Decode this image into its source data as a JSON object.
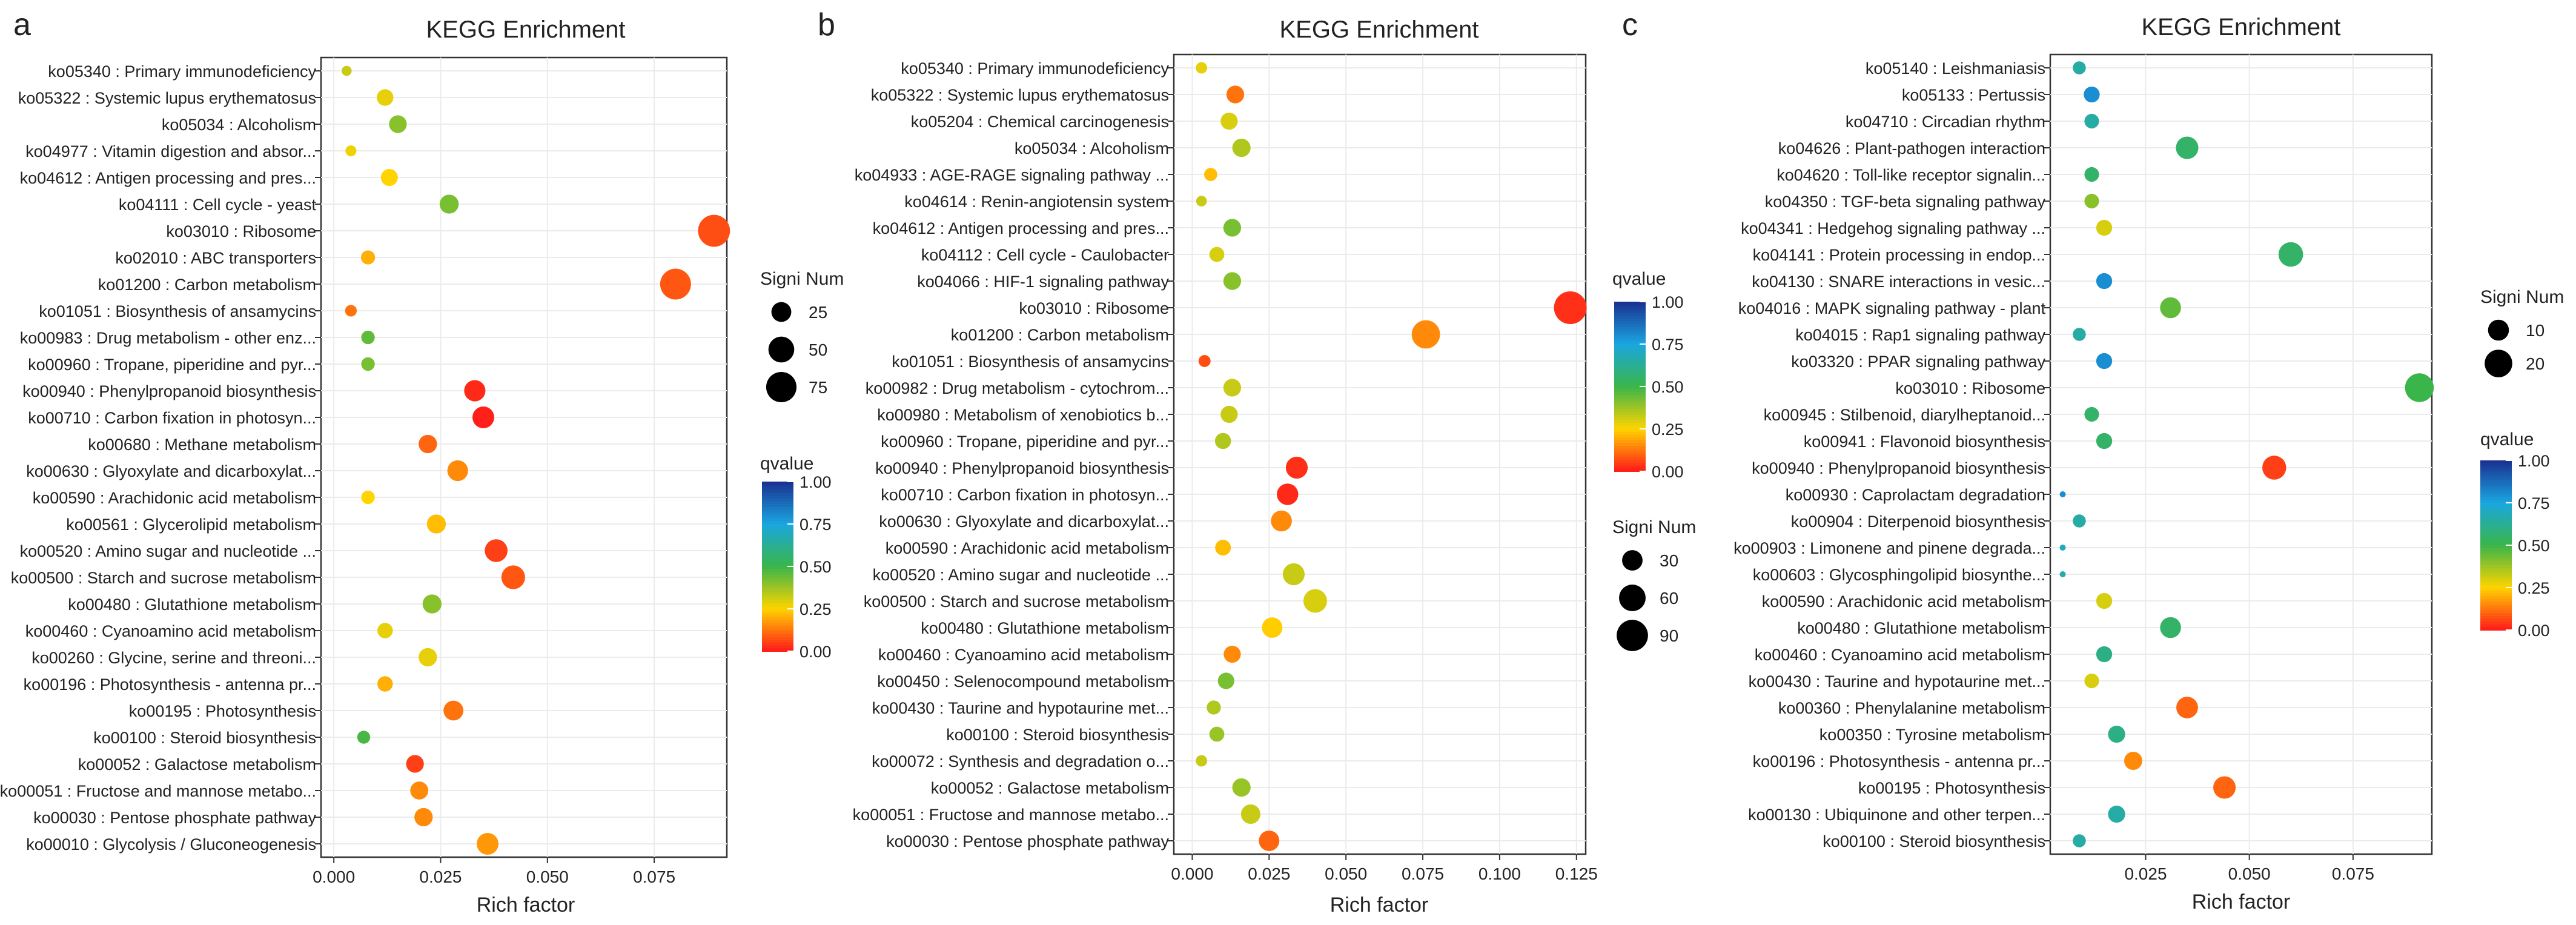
{
  "colors": {
    "low": "#ff1a1a",
    "mid_low": "#ffd400",
    "mid": "#39b54a",
    "mid_high": "#1aa6e0",
    "high": "#1a2f8f",
    "grid": "#ebebeb",
    "axis": "#333333"
  },
  "chart_data": [
    {
      "panel": "a",
      "type": "scatter",
      "title": "KEGG Enrichment",
      "xlabel": "Rich factor",
      "xlim": [
        -0.003,
        0.092
      ],
      "xticks": [
        0.0,
        0.025,
        0.05,
        0.075
      ],
      "xtick_labels": [
        "0.000",
        "0.025",
        "0.050",
        "0.075"
      ],
      "size_legend_title": "Signi Num",
      "size_legend": [
        25,
        50,
        75
      ],
      "size_range": [
        1,
        90
      ],
      "color_legend_title": "qvalue",
      "color_ticks": [
        "0.00",
        "0.25",
        "0.50",
        "0.75",
        "1.00"
      ],
      "terms": [
        "ko05340 : Primary immunodeficiency",
        "ko05322 : Systemic lupus erythematosus",
        "ko05034 : Alcoholism",
        "ko04977 : Vitamin digestion and absor...",
        "ko04612 : Antigen processing and pres...",
        "ko04111 : Cell cycle - yeast",
        "ko03010 : Ribosome",
        "ko02010 : ABC transporters",
        "ko01200 : Carbon metabolism",
        "ko01051 : Biosynthesis of ansamycins",
        "ko00983 : Drug metabolism - other enz...",
        "ko00960 : Tropane, piperidine and pyr...",
        "ko00940 : Phenylpropanoid biosynthesis",
        "ko00710 : Carbon fixation in photosyn...",
        "ko00680 : Methane metabolism",
        "ko00630 : Glyoxylate and dicarboxylat...",
        "ko00590 : Arachidonic acid metabolism",
        "ko00561 : Glycerolipid metabolism",
        "ko00520 : Amino sugar and nucleotide ...",
        "ko00500 : Starch and sucrose metabolism",
        "ko00480 : Glutathione metabolism",
        "ko00460 : Cyanoamino acid metabolism",
        "ko00260 : Glycine, serine and threoni...",
        "ko00196 : Photosynthesis - antenna pr...",
        "ko00195 : Photosynthesis",
        "ko00100 : Steroid biosynthesis",
        "ko00052 : Galactose metabolism",
        "ko00051 : Fructose and mannose metabo...",
        "ko00030 : Pentose phosphate pathway",
        "ko00010 : Glycolysis / Gluconeogenesis"
      ],
      "rich_factor": [
        0.003,
        0.012,
        0.015,
        0.004,
        0.013,
        0.027,
        0.089,
        0.008,
        0.08,
        0.004,
        0.008,
        0.008,
        0.033,
        0.035,
        0.022,
        0.029,
        0.008,
        0.024,
        0.038,
        0.042,
        0.023,
        0.012,
        0.022,
        0.012,
        0.028,
        0.007,
        0.019,
        0.02,
        0.021,
        0.036
      ],
      "signi_num": [
        3,
        15,
        18,
        4,
        16,
        22,
        85,
        9,
        78,
        5,
        8,
        8,
        30,
        32,
        20,
        28,
        8,
        22,
        36,
        40,
        22,
        12,
        20,
        12,
        25,
        7,
        18,
        19,
        20,
        32
      ],
      "qvalue": [
        0.32,
        0.28,
        0.4,
        0.27,
        0.25,
        0.42,
        0.07,
        0.2,
        0.08,
        0.12,
        0.45,
        0.42,
        0.02,
        0.01,
        0.1,
        0.15,
        0.25,
        0.22,
        0.05,
        0.08,
        0.4,
        0.28,
        0.28,
        0.2,
        0.12,
        0.48,
        0.05,
        0.15,
        0.15,
        0.17
      ]
    },
    {
      "panel": "b",
      "type": "scatter",
      "title": "KEGG Enrichment",
      "xlabel": "Rich factor",
      "xlim": [
        -0.006,
        0.128
      ],
      "xticks": [
        0.0,
        0.025,
        0.05,
        0.075,
        0.1,
        0.125
      ],
      "xtick_labels": [
        "0.000",
        "0.025",
        "0.050",
        "0.075",
        "0.100",
        "0.125"
      ],
      "size_legend_title": "Signi Num",
      "size_legend": [
        30,
        60,
        90
      ],
      "size_range": [
        1,
        100
      ],
      "color_legend_title": "qvalue",
      "color_ticks": [
        "0.00",
        "0.25",
        "0.50",
        "0.75",
        "1.00"
      ],
      "terms": [
        "ko05340 : Primary immunodeficiency",
        "ko05322 : Systemic lupus erythematosus",
        "ko05204 : Chemical carcinogenesis",
        "ko05034 : Alcoholism",
        "ko04933 : AGE-RAGE signaling pathway ...",
        "ko04614 : Renin-angiotensin system",
        "ko04612 : Antigen processing and pres...",
        "ko04112 : Cell cycle - Caulobacter",
        "ko04066 : HIF-1 signaling pathway",
        "ko03010 : Ribosome",
        "ko01200 : Carbon metabolism",
        "ko01051 : Biosynthesis of ansamycins",
        "ko00982 : Drug metabolism - cytochrom...",
        "ko00980 : Metabolism of xenobiotics b...",
        "ko00960 : Tropane, piperidine and pyr...",
        "ko00940 : Phenylpropanoid biosynthesis",
        "ko00710 : Carbon fixation in photosyn...",
        "ko00630 : Glyoxylate and dicarboxylat...",
        "ko00590 : Arachidonic acid metabolism",
        "ko00520 : Amino sugar and nucleotide ...",
        "ko00500 : Starch and sucrose metabolism",
        "ko00480 : Glutathione metabolism",
        "ko00460 : Cyanoamino acid metabolism",
        "ko00450 : Selenocompound metabolism",
        "ko00430 : Taurine and hypotaurine met...",
        "ko00100 : Steroid biosynthesis",
        "ko00072 : Synthesis and degradation o...",
        "ko00052 : Galactose metabolism",
        "ko00051 : Fructose and mannose metabo...",
        "ko00030 : Pentose phosphate pathway"
      ],
      "rich_factor": [
        0.003,
        0.014,
        0.012,
        0.016,
        0.006,
        0.003,
        0.013,
        0.008,
        0.013,
        0.123,
        0.076,
        0.004,
        0.013,
        0.012,
        0.01,
        0.034,
        0.031,
        0.029,
        0.01,
        0.033,
        0.04,
        0.026,
        0.013,
        0.011,
        0.007,
        0.008,
        0.003,
        0.016,
        0.019,
        0.025
      ],
      "signi_num": [
        5,
        20,
        18,
        22,
        8,
        4,
        20,
        12,
        20,
        100,
        70,
        6,
        20,
        18,
        15,
        36,
        34,
        32,
        14,
        36,
        44,
        30,
        18,
        16,
        10,
        12,
        5,
        22,
        26,
        30
      ],
      "qvalue": [
        0.28,
        0.12,
        0.3,
        0.35,
        0.22,
        0.32,
        0.42,
        0.3,
        0.4,
        0.03,
        0.15,
        0.07,
        0.32,
        0.32,
        0.35,
        0.03,
        0.02,
        0.15,
        0.22,
        0.32,
        0.3,
        0.24,
        0.15,
        0.42,
        0.35,
        0.38,
        0.32,
        0.38,
        0.32,
        0.1
      ]
    },
    {
      "panel": "c",
      "type": "scatter",
      "title": "KEGG Enrichment",
      "xlabel": "Rich factor",
      "xlim": [
        0.002,
        0.094
      ],
      "xticks": [
        0.025,
        0.05,
        0.075
      ],
      "xtick_labels": [
        "0.025",
        "0.050",
        "0.075"
      ],
      "size_legend_title": "Signi Num",
      "size_legend": [
        10,
        20
      ],
      "size_range": [
        1,
        30
      ],
      "color_legend_title": "qvalue",
      "color_ticks": [
        "0.00",
        "0.25",
        "0.50",
        "0.75",
        "1.00"
      ],
      "terms": [
        "ko05140 : Leishmaniasis",
        "ko05133 : Pertussis",
        "ko04710 : Circadian rhythm",
        "ko04626 : Plant-pathogen interaction",
        "ko04620 : Toll-like receptor signalin...",
        "ko04350 : TGF-beta signaling pathway",
        "ko04341 : Hedgehog signaling pathway ...",
        "ko04141 : Protein processing in endop...",
        "ko04130 : SNARE interactions in vesic...",
        "ko04016 : MAPK signaling pathway - plant",
        "ko04015 : Rap1 signaling pathway",
        "ko03320 : PPAR signaling pathway",
        "ko03010 : Ribosome",
        "ko00945 : Stilbenoid, diarylheptanoid...",
        "ko00941 : Flavonoid biosynthesis",
        "ko00940 : Phenylpropanoid biosynthesis",
        "ko00930 : Caprolactam degradation",
        "ko00904 : Diterpenoid biosynthesis",
        "ko00903 : Limonene and pinene degrada...",
        "ko00603 : Glycosphingolipid biosynthe...",
        "ko00590 : Arachidonic acid metabolism",
        "ko00480 : Glutathione metabolism",
        "ko00460 : Cyanoamino acid metabolism",
        "ko00430 : Taurine and hypotaurine met...",
        "ko00360 : Phenylalanine metabolism",
        "ko00350 : Tyrosine metabolism",
        "ko00196 : Photosynthesis - antenna pr...",
        "ko00195 : Photosynthesis",
        "ko00130 : Ubiquinone and other terpen...",
        "ko00100 : Steroid biosynthesis"
      ],
      "rich_factor": [
        0.009,
        0.012,
        0.012,
        0.035,
        0.012,
        0.012,
        0.015,
        0.06,
        0.015,
        0.031,
        0.009,
        0.015,
        0.091,
        0.012,
        0.015,
        0.056,
        0.005,
        0.009,
        0.005,
        0.005,
        0.015,
        0.031,
        0.015,
        0.012,
        0.035,
        0.018,
        0.022,
        0.044,
        0.018,
        0.009
      ],
      "signi_num": [
        3,
        5,
        4,
        12,
        4,
        4,
        5,
        15,
        5,
        10,
        3,
        5,
        22,
        4,
        5,
        14,
        1,
        3,
        1,
        1,
        5,
        10,
        5,
        4,
        11,
        6,
        7,
        12,
        6,
        3
      ],
      "qvalue": [
        0.65,
        0.8,
        0.65,
        0.55,
        0.55,
        0.4,
        0.3,
        0.55,
        0.8,
        0.45,
        0.65,
        0.8,
        0.5,
        0.55,
        0.55,
        0.05,
        0.8,
        0.65,
        0.7,
        0.65,
        0.3,
        0.55,
        0.6,
        0.3,
        0.1,
        0.6,
        0.15,
        0.1,
        0.65,
        0.65
      ]
    }
  ]
}
